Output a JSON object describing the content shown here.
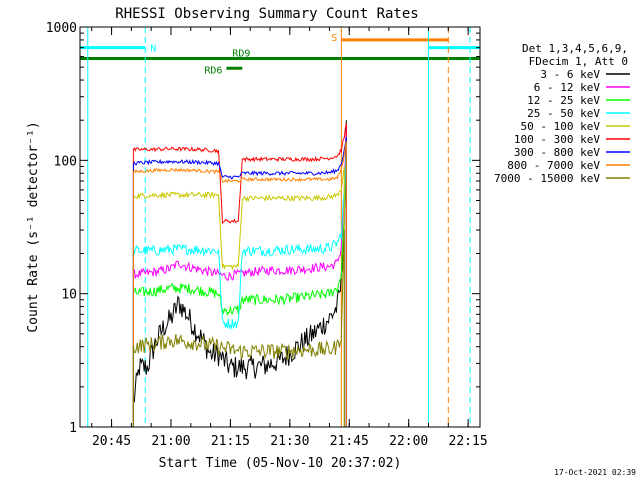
{
  "chart_data": {
    "type": "line",
    "title": "RHESSI Observing Summary Count Rates",
    "xlabel": "Start Time (05-Nov-10 20:37:02)",
    "ylabel": "Count Rate (s⁻¹ detector⁻¹)",
    "y_scale": "log",
    "ylim": [
      1,
      1000
    ],
    "x_range": [
      "20:37:02",
      "22:18:00"
    ],
    "x_ticks": [
      "20:45",
      "21:00",
      "21:15",
      "21:30",
      "21:45",
      "22:00",
      "22:15"
    ],
    "y_ticks": [
      "1",
      "10",
      "100",
      "1000"
    ],
    "footer_date": "17-Oct-2021 02:39",
    "legend_header": [
      "Det 1,3,4,5,6,9,",
      "FDecim 1, Att 0"
    ],
    "legend_position": "right",
    "flag_bars": [
      {
        "label": "N",
        "color": "#00ffff",
        "segments": [
          [
            "20:37:02",
            "20:53:30"
          ],
          [
            "22:05:00",
            "22:18:00"
          ]
        ],
        "level": 700
      },
      {
        "label": "S",
        "color": "#ff8000",
        "segments": [
          [
            "21:43:00",
            "22:10:00"
          ]
        ],
        "level": 800
      },
      {
        "label": "RD9",
        "color": "#008000",
        "segments": [
          [
            "20:37:02",
            "22:18:00"
          ]
        ],
        "level": 580
      },
      {
        "label": "RD6",
        "color": "#008000",
        "segments": [
          [
            "21:14:00",
            "21:18:00"
          ]
        ],
        "level": 490
      }
    ],
    "vertical_lines": [
      {
        "time": "20:39:00",
        "color": "#00ffff",
        "style": "solid"
      },
      {
        "time": "20:53:30",
        "color": "#00ffff",
        "style": "dashed"
      },
      {
        "time": "21:43:00",
        "color": "#ff8000",
        "style": "solid"
      },
      {
        "time": "22:05:00",
        "color": "#00ffff",
        "style": "solid"
      },
      {
        "time": "22:10:00",
        "color": "#ff8000",
        "style": "dashed"
      },
      {
        "time": "22:15:30",
        "color": "#00ffff",
        "style": "dashed"
      }
    ],
    "series": [
      {
        "name": "3 - 6 keV",
        "color": "#000000",
        "x": [
          "20:50:30",
          "20:52:00",
          "20:54:00",
          "20:56:00",
          "20:58:00",
          "21:00:00",
          "21:02:00",
          "21:04:00",
          "21:06:00",
          "21:08:00",
          "21:10:00",
          "21:12:00",
          "21:14:00",
          "21:15:00",
          "21:17:00",
          "21:20:00",
          "21:24:00",
          "21:28:00",
          "21:32:00",
          "21:36:00",
          "21:40:00",
          "21:42:00",
          "21:43:00",
          "21:43:45",
          "21:44:15"
        ],
        "y": [
          1.5,
          2.8,
          2.8,
          4.2,
          5.5,
          6.5,
          8.5,
          7.0,
          5.5,
          4.5,
          3.5,
          3.5,
          3.0,
          2.8,
          2.8,
          2.8,
          2.9,
          3.2,
          4.0,
          5.0,
          6.5,
          8.0,
          12.0,
          35.0,
          200.0
        ]
      },
      {
        "name": "6 - 12 keV",
        "color": "#ff00ff",
        "x": [
          "20:50:30",
          "20:52:00",
          "20:56:00",
          "21:00:00",
          "21:02:00",
          "21:04:00",
          "21:08:00",
          "21:12:00",
          "21:14:00",
          "21:17:00",
          "21:20:00",
          "21:25:00",
          "21:30:00",
          "21:35:00",
          "21:40:00",
          "21:42:00",
          "21:43:00",
          "21:43:45",
          "21:44:15"
        ],
        "y": [
          14,
          14,
          14.5,
          15.5,
          17,
          16,
          15,
          14,
          13.5,
          14,
          14.5,
          15,
          15,
          15.5,
          16,
          17,
          22,
          60,
          180
        ]
      },
      {
        "name": "12 - 25 keV",
        "color": "#00ff00",
        "x": [
          "20:50:30",
          "20:56:00",
          "21:00:00",
          "21:04:00",
          "21:08:00",
          "21:12:00",
          "21:13:00",
          "21:17:00",
          "21:18:00",
          "21:22:00",
          "21:28:00",
          "21:34:00",
          "21:40:00",
          "21:42:00",
          "21:43:00",
          "21:43:45",
          "21:44:15"
        ],
        "y": [
          10,
          10.5,
          11,
          11,
          10.5,
          10,
          7.5,
          7.5,
          9.0,
          9.0,
          9.0,
          9.5,
          10,
          11,
          14,
          40,
          150
        ]
      },
      {
        "name": "25 - 50 keV",
        "color": "#00ffff",
        "x": [
          "20:50:30",
          "20:56:00",
          "21:00:00",
          "21:06:00",
          "21:12:00",
          "21:13:00",
          "21:17:00",
          "21:18:00",
          "21:24:00",
          "21:30:00",
          "21:36:00",
          "21:40:00",
          "21:42:00",
          "21:43:00",
          "21:43:45",
          "21:44:15"
        ],
        "y": [
          21,
          21,
          21.5,
          21.5,
          21,
          6.0,
          6.0,
          21,
          21,
          21.5,
          21.5,
          22,
          24,
          28,
          60,
          120
        ]
      },
      {
        "name": "50 - 100 keV",
        "color": "#c8c800",
        "x": [
          "20:50:30",
          "20:56:00",
          "21:00:00",
          "21:06:00",
          "21:12:00",
          "21:13:00",
          "21:17:00",
          "21:18:00",
          "21:24:00",
          "21:30:00",
          "21:36:00",
          "21:40:00",
          "21:42:00",
          "21:43:00",
          "21:43:45"
        ],
        "y": [
          54,
          55,
          55,
          55,
          55,
          16,
          16,
          52,
          52,
          52,
          52,
          53,
          55,
          62,
          90
        ]
      },
      {
        "name": "100 - 300 keV",
        "color": "#ff0000",
        "x": [
          "20:50:30",
          "20:56:00",
          "21:00:00",
          "21:06:00",
          "21:12:00",
          "21:13:00",
          "21:17:00",
          "21:18:00",
          "21:24:00",
          "21:30:00",
          "21:36:00",
          "21:40:00",
          "21:42:00",
          "21:43:00",
          "21:43:45",
          "21:44:15"
        ],
        "y": [
          120,
          121,
          122,
          121,
          118,
          35,
          35,
          102,
          102,
          102,
          102,
          104,
          108,
          120,
          150,
          190
        ]
      },
      {
        "name": "300 - 800 keV",
        "color": "#0000ff",
        "x": [
          "20:50:30",
          "20:56:00",
          "21:00:00",
          "21:06:00",
          "21:12:00",
          "21:13:00",
          "21:17:00",
          "21:18:00",
          "21:24:00",
          "21:30:00",
          "21:36:00",
          "21:40:00",
          "21:42:00",
          "21:43:00",
          "21:43:45",
          "21:44:15"
        ],
        "y": [
          95,
          97,
          98,
          97,
          95,
          75,
          75,
          80,
          80,
          80,
          80,
          81,
          84,
          95,
          120,
          150
        ]
      },
      {
        "name": "800 - 7000 keV",
        "color": "#ff8000",
        "x": [
          "20:50:30",
          "20:56:00",
          "21:00:00",
          "21:06:00",
          "21:12:00",
          "21:13:00",
          "21:17:00",
          "21:18:00",
          "21:24:00",
          "21:30:00",
          "21:36:00",
          "21:40:00",
          "21:42:00",
          "21:43:00",
          "21:43:45",
          "21:44:15"
        ],
        "y": [
          82,
          84,
          85,
          84,
          82,
          70,
          70,
          72,
          72,
          72,
          72,
          72,
          74,
          85,
          110,
          140
        ]
      },
      {
        "name": "7000 - 15000 keV",
        "color": "#808000",
        "x": [
          "20:50:30",
          "20:56:00",
          "21:00:00",
          "21:06:00",
          "21:12:00",
          "21:17:00",
          "21:22:00",
          "21:28:00",
          "21:34:00",
          "21:40:00",
          "21:42:00",
          "21:43:00",
          "21:43:45"
        ],
        "y": [
          4.0,
          4.2,
          4.5,
          4.3,
          4.0,
          3.7,
          3.7,
          3.7,
          3.8,
          3.8,
          4.0,
          5.0,
          30
        ]
      }
    ]
  }
}
